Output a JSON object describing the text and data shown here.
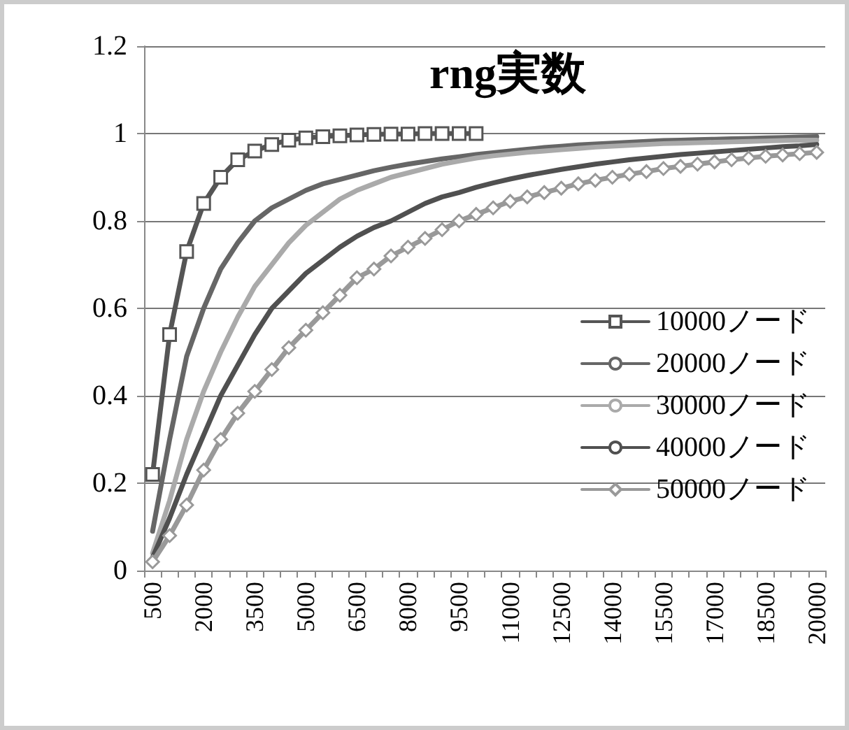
{
  "chart_data": {
    "type": "line",
    "title": "rng実数",
    "categories": [
      "500",
      null,
      null,
      "2000",
      null,
      null,
      "3500",
      null,
      null,
      "5000",
      null,
      null,
      "6500",
      null,
      null,
      "8000",
      null,
      null,
      "9500",
      null,
      null,
      "11000",
      null,
      null,
      "12500",
      null,
      null,
      "14000",
      null,
      null,
      "15500",
      null,
      null,
      "17000",
      null,
      null,
      "18500",
      null,
      null,
      "20000"
    ],
    "series": [
      {
        "name": "10000ノード",
        "color": "#555555",
        "marker": "square",
        "values": [
          0.22,
          0.54,
          0.73,
          0.84,
          0.9,
          0.94,
          0.96,
          0.975,
          0.985,
          0.99,
          0.993,
          0.995,
          0.997,
          0.998,
          0.999,
          0.999,
          1,
          1,
          1,
          1,
          null,
          null,
          null,
          null,
          null,
          null,
          null,
          null,
          null,
          null,
          null,
          null,
          null,
          null,
          null,
          null,
          null,
          null,
          null,
          null
        ]
      },
      {
        "name": "20000ノード",
        "color": "#666666",
        "marker": "none",
        "values": [
          0.09,
          0.3,
          0.49,
          0.6,
          0.69,
          0.75,
          0.8,
          0.83,
          0.85,
          0.87,
          0.885,
          0.895,
          0.905,
          0.915,
          0.923,
          0.93,
          0.936,
          0.942,
          0.947,
          0.952,
          0.956,
          0.96,
          0.964,
          0.968,
          0.971,
          0.974,
          0.976,
          0.978,
          0.98,
          0.982,
          0.984,
          0.985,
          0.986,
          0.987,
          0.988,
          0.989,
          0.99,
          0.991,
          0.992,
          0.993
        ]
      },
      {
        "name": "30000ノード",
        "color": "#aaaaaa",
        "marker": "none",
        "values": [
          0.04,
          0.16,
          0.3,
          0.41,
          0.5,
          0.58,
          0.65,
          0.7,
          0.75,
          0.79,
          0.82,
          0.85,
          0.87,
          0.885,
          0.9,
          0.91,
          0.92,
          0.93,
          0.937,
          0.944,
          0.949,
          0.953,
          0.957,
          0.96,
          0.963,
          0.966,
          0.969,
          0.971,
          0.973,
          0.975,
          0.977,
          0.978,
          0.979,
          0.98,
          0.981,
          0.982,
          0.983,
          0.984,
          0.985,
          0.985
        ]
      },
      {
        "name": "40000ノード",
        "color": "#505050",
        "marker": "none",
        "values": [
          0.03,
          0.12,
          0.22,
          0.31,
          0.4,
          0.47,
          0.54,
          0.6,
          0.64,
          0.68,
          0.71,
          0.74,
          0.765,
          0.785,
          0.8,
          0.82,
          0.84,
          0.855,
          0.865,
          0.877,
          0.887,
          0.896,
          0.904,
          0.911,
          0.918,
          0.924,
          0.93,
          0.935,
          0.94,
          0.944,
          0.948,
          0.952,
          0.955,
          0.958,
          0.961,
          0.964,
          0.967,
          0.97,
          0.972,
          0.975
        ]
      },
      {
        "name": "50000ノード",
        "color": "#999999",
        "marker": "diamond",
        "values": [
          0.02,
          0.08,
          0.15,
          0.23,
          0.3,
          0.36,
          0.41,
          0.46,
          0.51,
          0.55,
          0.59,
          0.63,
          0.67,
          0.69,
          0.72,
          0.74,
          0.76,
          0.78,
          0.8,
          0.815,
          0.83,
          0.845,
          0.855,
          0.865,
          0.875,
          0.885,
          0.893,
          0.9,
          0.907,
          0.913,
          0.92,
          0.925,
          0.93,
          0.935,
          0.94,
          0.944,
          0.948,
          0.951,
          0.954,
          0.957
        ]
      }
    ],
    "ylim": [
      0,
      1.2
    ],
    "yticks": [
      0,
      0.2,
      0.4,
      0.6,
      0.8,
      1,
      1.2
    ],
    "grid": "y",
    "legend": "right"
  }
}
